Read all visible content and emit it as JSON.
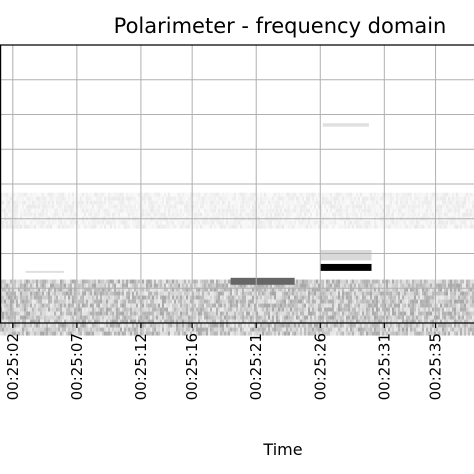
{
  "chart_data": {
    "type": "heatmap",
    "title": "Polarimeter - frequency domain",
    "xlabel": "Time",
    "ylabel": "",
    "colormap": [
      "#ffffff",
      "#000000"
    ],
    "grid": true,
    "x_ticks": [
      {
        "seconds": 1502,
        "label": "00:25:02"
      },
      {
        "seconds": 1507,
        "label": "00:25:07"
      },
      {
        "seconds": 1512,
        "label": "00:25:12"
      },
      {
        "seconds": 1516,
        "label": "00:25:16"
      },
      {
        "seconds": 1521,
        "label": "00:25:21"
      },
      {
        "seconds": 1526,
        "label": "00:25:26"
      },
      {
        "seconds": 1531,
        "label": "00:25:31"
      },
      {
        "seconds": 1535,
        "label": "00:25:35"
      }
    ],
    "xlim_seconds": [
      1501,
      1538
    ],
    "frequency_bins": 16,
    "features": [
      {
        "name": "low-frequency background noise",
        "t_start": 1501,
        "t_end": 1538,
        "bin_start": 0,
        "bin_end": 2,
        "intensity": 0.25
      },
      {
        "name": "faint mid-band noise",
        "t_start": 1501,
        "t_end": 1538,
        "bin_start": 6,
        "bin_end": 7,
        "intensity": 0.06
      },
      {
        "name": "weak line",
        "t_start": 1503,
        "t_end": 1506,
        "bin_start": 3,
        "bin_end": 3,
        "intensity": 0.12
      },
      {
        "name": "tone 1",
        "t_start": 1519,
        "t_end": 1524,
        "bin_start": 2.2,
        "bin_end": 2.6,
        "intensity": 0.6
      },
      {
        "name": "tone 2",
        "t_start": 1526,
        "t_end": 1530,
        "bin_start": 3.0,
        "bin_end": 3.4,
        "intensity": 1.0
      },
      {
        "name": "tone 2 halo",
        "t_start": 1526,
        "t_end": 1530,
        "bin_start": 3.6,
        "bin_end": 4.2,
        "intensity": 0.15
      },
      {
        "name": "tone 2 harmonic",
        "t_start": 1526.2,
        "t_end": 1529.8,
        "bin_start": 11.3,
        "bin_end": 11.5,
        "intensity": 0.12
      }
    ]
  }
}
